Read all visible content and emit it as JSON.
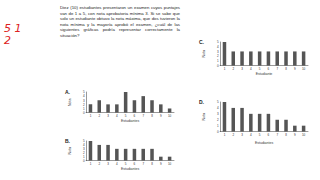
{
  "annotations": [
    "5 1",
    "2"
  ],
  "question": "Diez (10) estudiantes presentaron un examen cuyos puntajes van de 1 a 5, con nota aprobatoria mínima 3. Si se sabe que solo un estudiante obtuvo la nota máxima, que dos tuvieron la nota mínima y la mayoría aprobó el examen, ¿cuál de las siguientes gráficas podría representar correctamente la situación?",
  "chart_data": [
    {
      "type": "bar",
      "title": "A.",
      "x_label": "Estudiantes",
      "y_label": "Nota",
      "color": "#555555",
      "categories": [
        "1",
        "2",
        "3",
        "4",
        "5",
        "6",
        "7",
        "8",
        "9",
        "10"
      ],
      "values": [
        2,
        3,
        2,
        2,
        5,
        3,
        4,
        3,
        2,
        1
      ],
      "ylim": [
        0,
        5
      ],
      "yticks": [
        0,
        1,
        2,
        3,
        4,
        5
      ]
    },
    {
      "type": "bar",
      "title": "B.",
      "x_label": "Estudiantes",
      "y_label": "Nota",
      "color": "#555555",
      "categories": [
        "1",
        "2",
        "3",
        "4",
        "5",
        "6",
        "7",
        "8",
        "9",
        "10"
      ],
      "values": [
        5,
        4,
        4,
        3,
        3,
        3,
        3,
        3,
        1,
        1
      ],
      "ylim": [
        0,
        5
      ],
      "yticks": [
        0,
        1,
        2,
        3,
        4,
        5
      ]
    },
    {
      "type": "bar",
      "title": "C.",
      "x_label": "Estudiante",
      "y_label": "Nota",
      "color": "#555555",
      "categories": [
        "1",
        "2",
        "3",
        "4",
        "5",
        "6",
        "7",
        "8",
        "9",
        "10"
      ],
      "values": [
        5,
        3,
        3,
        3,
        3,
        3,
        3,
        3,
        3,
        3
      ],
      "ylim": [
        0,
        5
      ],
      "yticks": [
        0,
        1,
        2,
        3,
        4,
        5
      ]
    },
    {
      "type": "bar",
      "title": "D.",
      "x_label": "Estudiantes",
      "y_label": "Nota",
      "color": "#555555",
      "categories": [
        "1",
        "2",
        "3",
        "4",
        "5",
        "6",
        "7",
        "8",
        "9",
        "10"
      ],
      "values": [
        5,
        4,
        4,
        3,
        3,
        3,
        2,
        2,
        1,
        1
      ],
      "ylim": [
        0,
        5
      ],
      "yticks": [
        0,
        1,
        2,
        3,
        4,
        5
      ]
    }
  ]
}
